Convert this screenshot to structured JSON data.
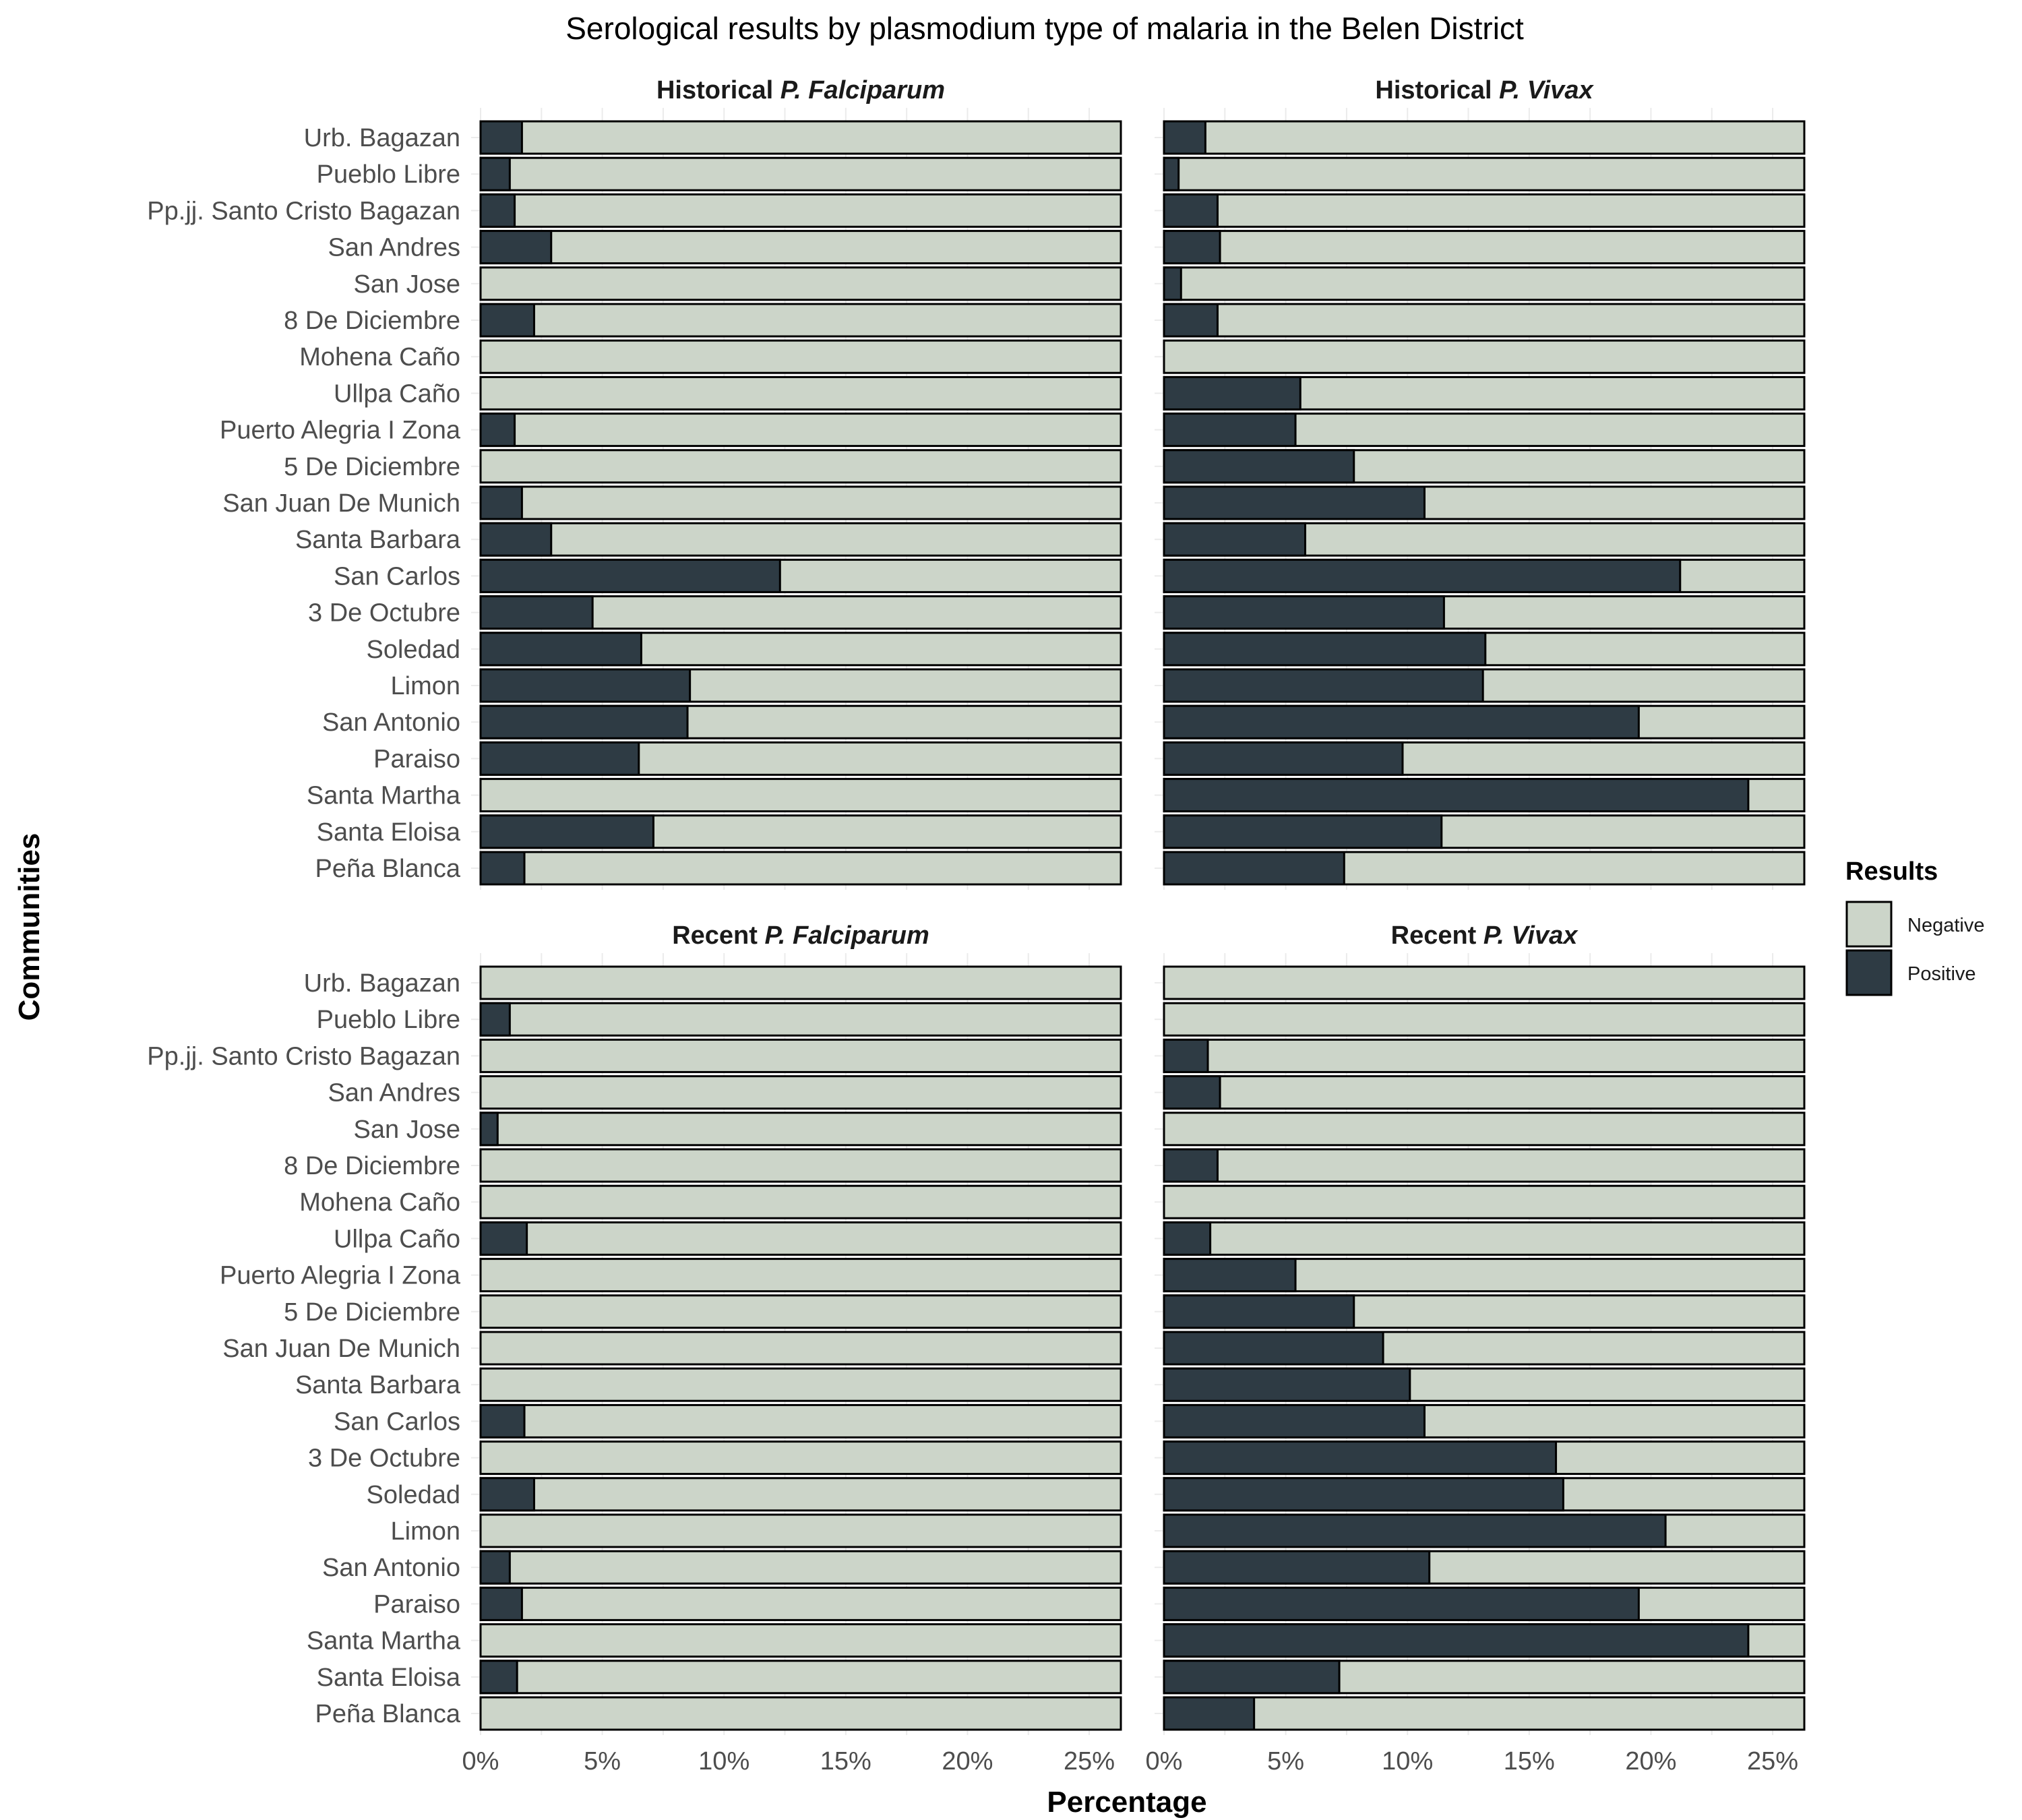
{
  "chart_data": {
    "type": "bar",
    "orientation": "horizontal",
    "stacked": true,
    "title": "Serological results by plasmodium type of malaria in the Belen District",
    "xlabel": "Percentage",
    "ylabel": "Communities",
    "xlim": [
      0,
      26.3
    ],
    "xticks": [
      0,
      5,
      10,
      15,
      20,
      25
    ],
    "xtick_labels": [
      "0%",
      "5%",
      "10%",
      "15%",
      "20%",
      "25%"
    ],
    "grid": true,
    "legend": {
      "title": "Results",
      "position": "right",
      "entries": [
        {
          "label": "Negative",
          "color": "#ccd5c9"
        },
        {
          "label": "Positive",
          "color": "#2e3b44"
        }
      ]
    },
    "categories": [
      "Urb. Bagazan",
      "Pueblo Libre",
      "Pp.jj. Santo Cristo Bagazan",
      "San Andres",
      "San Jose",
      "8 De Diciembre",
      "Mohena Caño",
      "Ullpa Caño",
      "Puerto Alegria I Zona",
      "5 De Diciembre",
      "San Juan De Munich",
      "Santa Barbara",
      "San Carlos",
      "3 De Octubre",
      "Soledad",
      "Limon",
      "San Antonio",
      "Paraiso",
      "Santa Martha",
      "Santa Eloisa",
      "Peña Blanca"
    ],
    "panels": [
      {
        "title_plain": "Historical ",
        "title_italic": "P. Falciparum",
        "positive": [
          1.7,
          1.2,
          1.4,
          2.9,
          0,
          2.2,
          0,
          0,
          1.4,
          0,
          1.7,
          2.9,
          12.3,
          4.6,
          6.6,
          8.6,
          8.5,
          6.5,
          0,
          7.1,
          1.8
        ]
      },
      {
        "title_plain": "Historical ",
        "title_italic": "P. Vivax",
        "positive": [
          1.7,
          0.6,
          2.2,
          2.3,
          0.7,
          2.2,
          0,
          5.6,
          5.4,
          7.8,
          10.7,
          5.8,
          21.2,
          11.5,
          13.2,
          13.1,
          19.5,
          9.8,
          24.0,
          11.4,
          7.4
        ]
      },
      {
        "title_plain": "Recent ",
        "title_italic": "P. Falciparum",
        "positive": [
          0,
          1.2,
          0,
          0,
          0.7,
          0,
          0,
          1.9,
          0,
          0,
          0,
          0,
          1.8,
          0,
          2.2,
          0,
          1.2,
          1.7,
          0,
          1.5,
          0
        ]
      },
      {
        "title_plain": "Recent ",
        "title_italic": "P. Vivax",
        "positive": [
          0,
          0,
          1.8,
          2.3,
          0,
          2.2,
          0,
          1.9,
          5.4,
          7.8,
          9.0,
          10.1,
          10.7,
          16.1,
          16.4,
          20.6,
          10.9,
          19.5,
          24.0,
          7.2,
          3.7
        ]
      }
    ]
  }
}
